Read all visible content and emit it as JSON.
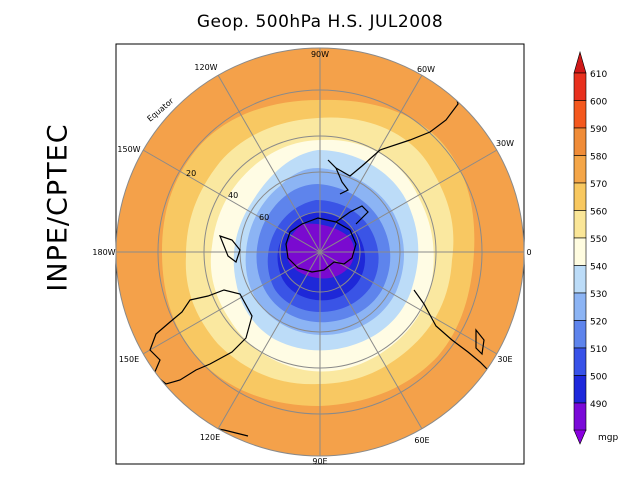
{
  "title": "Geop. 500hPa H.S. JUL2008",
  "side_label": "INPE/CPTEC",
  "lon_labels": [
    "90W",
    "60W",
    "30W",
    "0",
    "30E",
    "60E",
    "90E",
    "120E",
    "150E",
    "180W",
    "150W",
    "120W"
  ],
  "lat_labels": [
    "Equator",
    "20",
    "40",
    "60"
  ],
  "colorbar": {
    "unit": "mgp",
    "levels": [
      {
        "value": "610",
        "color": "#e8301e"
      },
      {
        "value": "600",
        "color": "#f4581e"
      },
      {
        "value": "590",
        "color": "#f08c38"
      },
      {
        "value": "580",
        "color": "#f4a648"
      },
      {
        "value": "570",
        "color": "#f8c860"
      },
      {
        "value": "560",
        "color": "#fae698"
      },
      {
        "value": "550",
        "color": "#fffce0"
      },
      {
        "value": "540",
        "color": "#bcdcf8"
      },
      {
        "value": "530",
        "color": "#8cb4f4"
      },
      {
        "value": "520",
        "color": "#5e84ec"
      },
      {
        "value": "510",
        "color": "#3852e8"
      },
      {
        "value": "500",
        "color": "#1e28dc"
      },
      {
        "value": "490",
        "color": "#7a0ad8"
      }
    ],
    "top_color": "#d01818",
    "bottom_color": "#8a00e0"
  },
  "map_colors": {
    "c580": "#f4a14a",
    "c570": "#f8c862",
    "c560": "#fae8a0",
    "c550": "#fffce4",
    "c540": "#bcdcf8",
    "c530": "#8cb4f4",
    "c520": "#5e84ec",
    "c510": "#3a54e6",
    "c500": "#1e28d8",
    "c490": "#7a0ad0"
  }
}
